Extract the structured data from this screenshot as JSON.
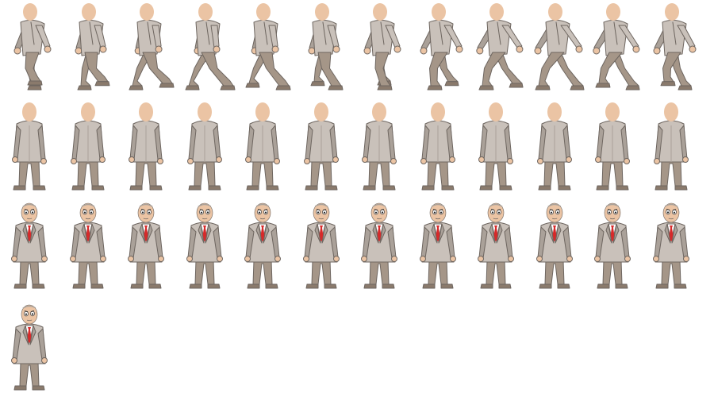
{
  "sheet": {
    "background": "#ffffff",
    "palette": {
      "skin": "#ebc4a4",
      "suit": "#c9c1ba",
      "suit_shade": "#aaa199",
      "trousers": "#a59688",
      "shoe": "#8a7a6c",
      "outline": "#6e6660",
      "tie": "#d62a2a",
      "shirt": "#ffffff",
      "eye": "#222222"
    },
    "rows": [
      {
        "name": "walk-side",
        "frame_count": 12,
        "icon": "walking-man-side-icon"
      },
      {
        "name": "idle-back",
        "frame_count": 12,
        "icon": "standing-man-back-icon"
      },
      {
        "name": "idle-front",
        "frame_count": 12,
        "icon": "standing-man-front-icon"
      },
      {
        "name": "idle-front-extra",
        "frame_count": 1,
        "icon": "standing-man-front-icon"
      }
    ]
  }
}
